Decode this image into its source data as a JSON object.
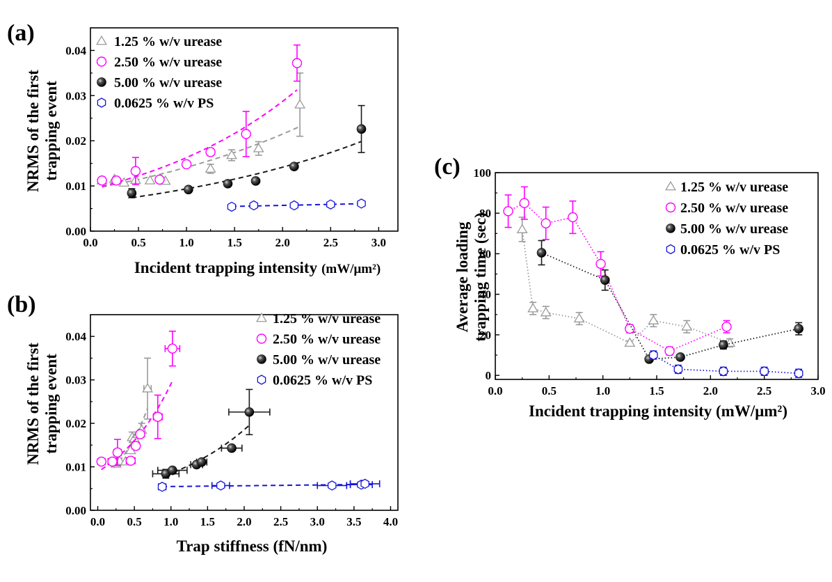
{
  "colors": {
    "c1": "#9a9a9a",
    "c2": "#ff00ff",
    "c3": "#1a1a1a",
    "c4": "#1515d8"
  },
  "chart_data": [
    {
      "id": "a",
      "type": "scatter",
      "panel_label": "(a)",
      "xlabel": "Incident trapping intensity",
      "xunit": "(mW/μm²)",
      "ylabel": [
        "NRMS of the first",
        "trapping event"
      ],
      "xlim": [
        0,
        3.2
      ],
      "ylim": [
        0,
        0.045
      ],
      "xticks": [
        "0.0",
        "0.5",
        "1.0",
        "1.5",
        "2.0",
        "2.5",
        "3.0"
      ],
      "yticks": [
        "0.00",
        "0.01",
        "0.02",
        "0.03",
        "0.04"
      ],
      "legend_position": "top-left",
      "series": [
        {
          "name": "1.25 % w/v urease",
          "marker": "triangle",
          "color": "#9a9a9a",
          "fit": "dashed",
          "x": [
            0.12,
            0.25,
            0.35,
            0.47,
            0.62,
            0.78,
            1.25,
            1.47,
            1.75,
            2.18
          ],
          "y": [
            0.0112,
            0.0115,
            0.0107,
            0.0113,
            0.0112,
            0.0111,
            0.0138,
            0.0168,
            0.0183,
            0.028
          ],
          "yerr": [
            0,
            0,
            0,
            0,
            0,
            0,
            0.001,
            0.0012,
            0.0015,
            0.007
          ]
        },
        {
          "name": "2.50 % w/v urease",
          "marker": "circle-open",
          "color": "#ff00ff",
          "fit": "dashed",
          "x": [
            0.12,
            0.27,
            0.47,
            0.72,
            1.0,
            1.25,
            1.62,
            2.15
          ],
          "y": [
            0.0112,
            0.0112,
            0.0133,
            0.0114,
            0.0148,
            0.0175,
            0.0215,
            0.0372
          ],
          "yerr": [
            0,
            0,
            0.003,
            0.0006,
            0,
            0.0008,
            0.005,
            0.004
          ]
        },
        {
          "name": "5.00 % w/v urease",
          "marker": "sphere",
          "color": "#1a1a1a",
          "fit": "dashed",
          "x": [
            0.43,
            1.02,
            1.43,
            1.72,
            2.12,
            2.82
          ],
          "y": [
            0.0084,
            0.0092,
            0.0105,
            0.0111,
            0.0143,
            0.0226
          ],
          "yerr": [
            0.001,
            0,
            0,
            0,
            0,
            0.0052
          ]
        },
        {
          "name": "0.0625 % w/v PS",
          "marker": "hexagon",
          "color": "#1515d8",
          "fit": "dashed",
          "x": [
            1.47,
            1.7,
            2.12,
            2.5,
            2.82
          ],
          "y": [
            0.0054,
            0.0057,
            0.0057,
            0.0059,
            0.0061
          ],
          "yerr": [
            0,
            0,
            0,
            0,
            0
          ]
        }
      ]
    },
    {
      "id": "b",
      "type": "scatter",
      "panel_label": "(b)",
      "xlabel": "Trap stiffness (fN/nm)",
      "ylabel": [
        "NRMS of the first",
        "trapping event"
      ],
      "xlim": [
        -0.1,
        4.1
      ],
      "ylim": [
        0,
        0.045
      ],
      "xticks": [
        "0.0",
        "0.5",
        "1.0",
        "1.5",
        "2.0",
        "2.5",
        "3.0",
        "3.5",
        "4.0"
      ],
      "yticks": [
        "0.00",
        "0.01",
        "0.02",
        "0.03",
        "0.04"
      ],
      "legend_position": "top-right",
      "series": [
        {
          "name": "1.25 % w/v urease",
          "marker": "triangle",
          "color": "#9a9a9a",
          "fit": "dashed",
          "x": [
            0.22,
            0.25,
            0.3,
            0.38,
            0.45,
            0.47,
            0.5,
            0.55,
            0.6,
            0.68
          ],
          "y": [
            0.0112,
            0.0107,
            0.0113,
            0.0112,
            0.0138,
            0.0168,
            0.0165,
            0.0175,
            0.0185,
            0.028
          ],
          "yerr": [
            0,
            0,
            0,
            0,
            0,
            0.0012,
            0,
            0,
            0.0015,
            0.007
          ],
          "xerr": [
            0,
            0,
            0,
            0,
            0,
            0,
            0,
            0,
            0,
            0.05
          ]
        },
        {
          "name": "2.50 % w/v urease",
          "marker": "circle-open",
          "color": "#ff00ff",
          "fit": "dashed",
          "x": [
            0.05,
            0.2,
            0.27,
            0.45,
            0.52,
            0.58,
            0.82,
            1.02
          ],
          "y": [
            0.0112,
            0.0112,
            0.0133,
            0.0114,
            0.0148,
            0.0175,
            0.0215,
            0.0372
          ],
          "yerr": [
            0,
            0,
            0.003,
            0,
            0,
            0,
            0.005,
            0.004
          ],
          "xerr": [
            0.05,
            0.06,
            0.05,
            0.06,
            0.05,
            0.05,
            0.06,
            0.1
          ]
        },
        {
          "name": "5.00 % w/v urease",
          "marker": "sphere",
          "color": "#1a1a1a",
          "fit": "dashed",
          "x": [
            0.93,
            1.02,
            1.35,
            1.42,
            1.83,
            2.07
          ],
          "y": [
            0.0084,
            0.0092,
            0.0105,
            0.0111,
            0.0143,
            0.0226
          ],
          "yerr": [
            0.001,
            0,
            0,
            0,
            0,
            0.0052
          ],
          "xerr": [
            0.18,
            0.2,
            0.08,
            0.07,
            0.14,
            0.28
          ]
        },
        {
          "name": "0.0625 % w/v PS",
          "marker": "hexagon",
          "color": "#1515d8",
          "fit": "dashed",
          "x": [
            0.88,
            1.68,
            3.2,
            3.6,
            3.65
          ],
          "y": [
            0.0054,
            0.0057,
            0.0057,
            0.0059,
            0.0061
          ],
          "yerr": [
            0,
            0,
            0,
            0,
            0
          ],
          "xerr": [
            0.05,
            0.12,
            0.2,
            0.15,
            0.2
          ]
        }
      ]
    },
    {
      "id": "c",
      "type": "line",
      "panel_label": "(c)",
      "xlabel": "Incident trapping intensity (mW/μm²)",
      "ylabel": [
        "Average loading",
        "trapping time (sec)"
      ],
      "xlim": [
        0,
        3.0
      ],
      "ylim": [
        -2,
        100
      ],
      "xticks": [
        "0.0",
        "0.5",
        "1.0",
        "1.5",
        "2.0",
        "2.5",
        "3.0"
      ],
      "yticks": [
        "0",
        "20",
        "40",
        "60",
        "80",
        "100"
      ],
      "legend_position": "top-right",
      "series": [
        {
          "name": "1.25 % w/v urease",
          "marker": "triangle",
          "color": "#9a9a9a",
          "line": "dotted",
          "x": [
            0.25,
            0.35,
            0.47,
            0.78,
            1.25,
            1.47,
            1.78,
            2.18
          ],
          "y": [
            72,
            33,
            31,
            28,
            16,
            27,
            24,
            16
          ],
          "yerr": [
            6,
            3,
            3,
            3,
            1,
            3,
            3,
            2
          ]
        },
        {
          "name": "2.50 % w/v urease",
          "marker": "circle-open",
          "color": "#ff00ff",
          "line": "dotted",
          "x": [
            0.12,
            0.27,
            0.47,
            0.72,
            0.98,
            1.25,
            1.62,
            2.15
          ],
          "y": [
            81,
            85,
            75,
            78,
            55,
            23,
            12,
            24
          ],
          "yerr": [
            8,
            8,
            8,
            8,
            6,
            2,
            2,
            3
          ]
        },
        {
          "name": "5.00 % w/v urease",
          "marker": "sphere",
          "color": "#1a1a1a",
          "line": "dotted",
          "x": [
            0.43,
            1.02,
            1.43,
            1.72,
            2.12,
            2.82
          ],
          "y": [
            60.5,
            47,
            8,
            9,
            15,
            23
          ],
          "yerr": [
            6,
            5,
            1,
            1,
            2,
            3
          ]
        },
        {
          "name": "0.0625 % w/v PS",
          "marker": "hexagon",
          "color": "#1515d8",
          "line": "dotted",
          "x": [
            1.47,
            1.7,
            2.12,
            2.5,
            2.82
          ],
          "y": [
            10,
            3,
            2,
            2,
            1
          ],
          "yerr": [
            2,
            2,
            2,
            2,
            2
          ]
        }
      ]
    }
  ]
}
